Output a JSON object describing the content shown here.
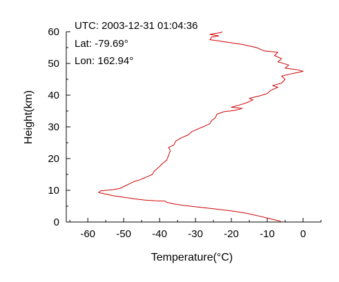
{
  "chart_data": {
    "type": "line",
    "title": "",
    "xlabel": "Temperature(°C)",
    "ylabel": "Height(km)",
    "xlim": [
      -66,
      5
    ],
    "ylim": [
      0,
      60
    ],
    "x_ticks": [
      -60,
      -50,
      -40,
      -30,
      -20,
      -10,
      0
    ],
    "y_ticks": [
      0,
      10,
      20,
      30,
      40,
      50,
      60
    ],
    "x_tick_labels": [
      "-60",
      "-50",
      "-40",
      "-30",
      "-20",
      "-10",
      "0"
    ],
    "y_tick_labels": [
      "0",
      "10",
      "20",
      "30",
      "40",
      "50",
      "60"
    ],
    "grid": false,
    "legend": "none",
    "annotations": {
      "utc": "UTC: 2003-12-31 01:04:36",
      "lat": "Lat: -79.69°",
      "lon": "Lon: 162.94°"
    },
    "series": [
      {
        "color": "#cc0000",
        "points": [
          [
            -6.0,
            0.0
          ],
          [
            -6.5,
            0.3
          ],
          [
            -9.0,
            1.0
          ],
          [
            -12.0,
            1.8
          ],
          [
            -16.0,
            2.8
          ],
          [
            -20.0,
            3.5
          ],
          [
            -25.0,
            4.2
          ],
          [
            -30.0,
            4.8
          ],
          [
            -33.0,
            5.2
          ],
          [
            -36.0,
            5.7
          ],
          [
            -38.0,
            6.2
          ],
          [
            -38.5,
            6.6
          ],
          [
            -41.0,
            6.7
          ],
          [
            -44.0,
            6.9
          ],
          [
            -47.0,
            7.3
          ],
          [
            -50.0,
            7.8
          ],
          [
            -53.0,
            8.3
          ],
          [
            -55.0,
            8.8
          ],
          [
            -57.0,
            9.3
          ],
          [
            -56.5,
            9.8
          ],
          [
            -55.0,
            10.0
          ],
          [
            -53.0,
            10.2
          ],
          [
            -51.0,
            10.6
          ],
          [
            -50.0,
            11.2
          ],
          [
            -48.5,
            12.0
          ],
          [
            -47.0,
            12.8
          ],
          [
            -45.5,
            13.3
          ],
          [
            -44.0,
            14.0
          ],
          [
            -42.0,
            15.0
          ],
          [
            -41.5,
            16.0
          ],
          [
            -40.0,
            17.5
          ],
          [
            -39.0,
            18.6
          ],
          [
            -38.0,
            19.5
          ],
          [
            -37.5,
            21.0
          ],
          [
            -37.0,
            22.5
          ],
          [
            -37.5,
            23.5
          ],
          [
            -36.0,
            24.3
          ],
          [
            -35.5,
            25.5
          ],
          [
            -34.0,
            26.5
          ],
          [
            -32.0,
            27.5
          ],
          [
            -31.0,
            28.5
          ],
          [
            -29.0,
            29.5
          ],
          [
            -27.5,
            30.2
          ],
          [
            -26.0,
            31.0
          ],
          [
            -25.5,
            32.0
          ],
          [
            -24.5,
            32.8
          ],
          [
            -24.0,
            34.0
          ],
          [
            -22.0,
            34.8
          ],
          [
            -19.0,
            35.2
          ],
          [
            -17.0,
            35.8
          ],
          [
            -20.0,
            36.2
          ],
          [
            -18.0,
            36.8
          ],
          [
            -16.0,
            37.5
          ],
          [
            -14.0,
            38.5
          ],
          [
            -15.0,
            39.0
          ],
          [
            -12.0,
            39.8
          ],
          [
            -10.0,
            40.5
          ],
          [
            -9.0,
            41.5
          ],
          [
            -7.0,
            42.5
          ],
          [
            -8.5,
            43.0
          ],
          [
            -6.0,
            43.8
          ],
          [
            -5.0,
            45.0
          ],
          [
            -6.0,
            46.0
          ],
          [
            -3.0,
            46.8
          ],
          [
            0.0,
            47.5
          ],
          [
            -1.5,
            48.0
          ],
          [
            -5.0,
            48.5
          ],
          [
            -4.0,
            49.5
          ],
          [
            -7.0,
            50.5
          ],
          [
            -6.0,
            51.5
          ],
          [
            -8.0,
            52.5
          ],
          [
            -7.0,
            53.5
          ],
          [
            -11.0,
            54.0
          ],
          [
            -13.0,
            55.0
          ],
          [
            -15.0,
            55.5
          ],
          [
            -17.0,
            56.0
          ],
          [
            -20.0,
            56.5
          ],
          [
            -23.0,
            57.0
          ],
          [
            -26.0,
            57.5
          ],
          [
            -25.5,
            58.3
          ],
          [
            -23.5,
            58.7
          ],
          [
            -26.0,
            59.2
          ],
          [
            -23.0,
            59.7
          ],
          [
            -22.5,
            60.0
          ]
        ]
      }
    ]
  }
}
